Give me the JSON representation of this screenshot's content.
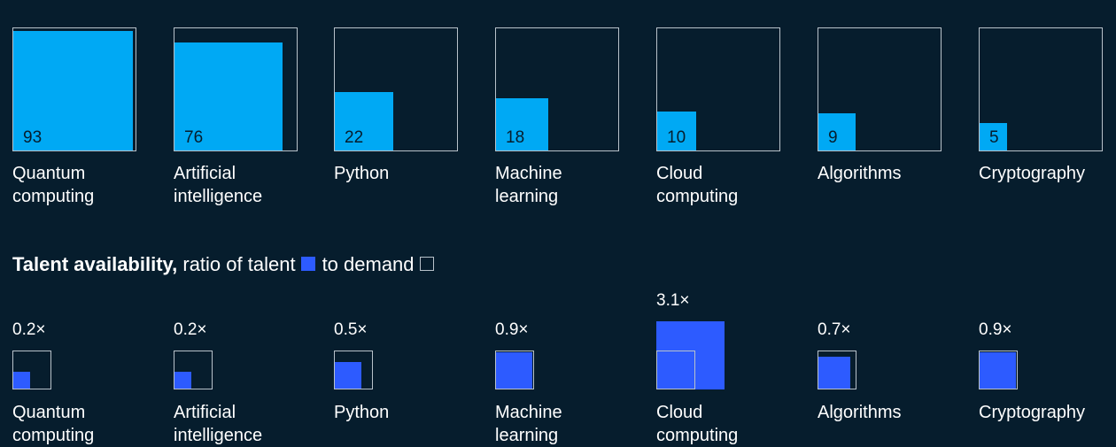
{
  "colors": {
    "background": "#061d2d",
    "demand_fill": "#00a9f4",
    "talent_fill": "#2d5bff",
    "outline": "#b8c2ca"
  },
  "chart_data": [
    {
      "type": "bar",
      "categories": [
        "Quantum computing",
        "Artificial intelligence",
        "Python",
        "Machine learning",
        "Cloud computing",
        "Algorithms",
        "Cryptography"
      ],
      "labels": [
        "Quantum\ncomputing",
        "Artificial\nintelligence",
        "Python",
        "Machine\nlearning",
        "Cloud\ncomputing",
        "Algorithms",
        "Cryptography"
      ],
      "values": [
        93,
        76,
        22,
        18,
        10,
        9,
        5
      ],
      "value_labels": [
        "93",
        "76",
        "22",
        "18",
        "10",
        "9",
        "5"
      ],
      "ylim": [
        0,
        100
      ]
    },
    {
      "type": "bar",
      "title_bold": "Talent availability,",
      "title_rest": "ratio of talent",
      "legend_mid": "to demand",
      "categories": [
        "Quantum computing",
        "Artificial intelligence",
        "Python",
        "Machine learning",
        "Cloud computing",
        "Algorithms",
        "Cryptography"
      ],
      "labels": [
        "Quantum\ncomputing",
        "Artificial\nintelligence",
        "Python",
        "Machine\nlearning",
        "Cloud\ncomputing",
        "Algorithms",
        "Cryptography"
      ],
      "values": [
        0.2,
        0.2,
        0.5,
        0.9,
        3.1,
        0.7,
        0.9
      ],
      "value_labels": [
        "0.2×",
        "0.2×",
        "0.5×",
        "0.9×",
        "3.1×",
        "0.7×",
        "0.9×"
      ]
    }
  ]
}
